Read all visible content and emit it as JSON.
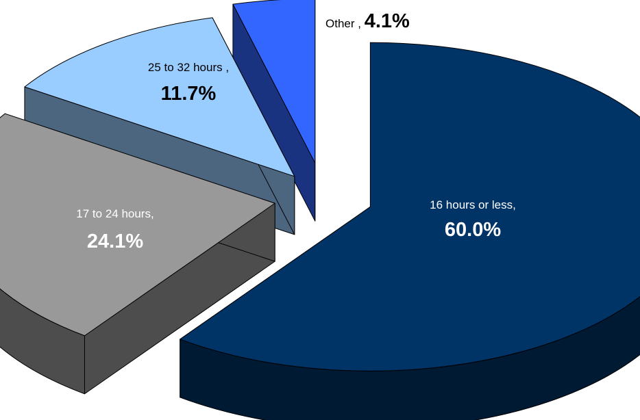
{
  "chart_data": {
    "type": "pie",
    "style": "3d-exploded",
    "slices": [
      {
        "label": "16 hours or less,",
        "value": 60.0,
        "value_text": "60.0%",
        "color": "#003366",
        "side_color": "#001A33",
        "text_color": "#FFFFFF"
      },
      {
        "label": "17 to 24 hours,",
        "value": 24.1,
        "value_text": "24.1%",
        "color": "#999999",
        "side_color": "#4D4D4D",
        "text_color": "#FFFFFF"
      },
      {
        "label": "25 to 32 hours ,",
        "value": 11.7,
        "value_text": "11.7%",
        "color": "#99CCFF",
        "side_color": "#4D6680",
        "text_color": "#000000"
      },
      {
        "label": "Other ,",
        "value": 4.1,
        "value_text": "4.1%",
        "color": "#3366FF",
        "side_color": "#1A3380",
        "text_color": "#000000"
      }
    ]
  }
}
